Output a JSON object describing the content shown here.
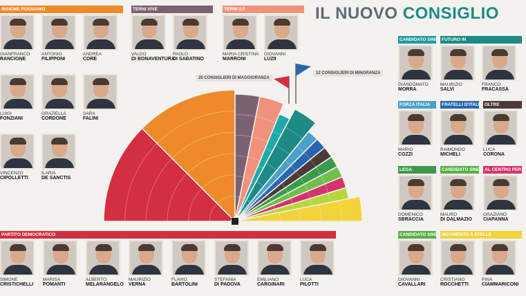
{
  "title": {
    "part1": "IL NUOVO",
    "part2": "CONSIGLIO"
  },
  "labels": {
    "majority": "20 CONSIGLIERI DI MAGGIORANZA",
    "minority": "12 CONSIGLIERI DI MINORANZA"
  },
  "colors": {
    "pd": "#d32f42",
    "insieme": "#ee8a2a",
    "terni_vive": "#7b6270",
    "terni30": "#f0917c",
    "forza": "#4aa0c8",
    "fratelli": "#2a66b0",
    "futuro": "#1d8a86",
    "oltre": "#4b3a36",
    "lega": "#3d9a4d",
    "alcentro": "#d6336c",
    "m5s": "#f2d33a",
    "sindaco_teal": "#1f9aa0",
    "sindaco_green": "#5ab048"
  },
  "chart_data": {
    "type": "pie",
    "variant": "semicircle-parliament",
    "title": "IL NUOVO CONSIGLIO",
    "series": [
      {
        "name": "Partito Democratico",
        "seats": 8,
        "color": "#d32f42"
      },
      {
        "name": "Insieme Possiamo",
        "seats": 8,
        "color": "#ee8a2a"
      },
      {
        "name": "Terni Vive",
        "seats": 2,
        "color": "#7b6270"
      },
      {
        "name": "Terni 3.0",
        "seats": 2,
        "color": "#f0917c"
      },
      {
        "name": "Candidato sindaco Morra",
        "seats": 1,
        "color": "#20a9a9"
      },
      {
        "name": "Futuro In",
        "seats": 2,
        "color": "#1d8a86"
      },
      {
        "name": "Forza Italia",
        "seats": 1,
        "color": "#4aa0c8"
      },
      {
        "name": "Fratelli d'Italia",
        "seats": 1,
        "color": "#2a66b0"
      },
      {
        "name": "Oltre",
        "seats": 1,
        "color": "#4b3a36"
      },
      {
        "name": "Lega",
        "seats": 1,
        "color": "#3d9a4d"
      },
      {
        "name": "Candidato sindaco Di Dalmazio",
        "seats": 1,
        "color": "#6fbf4a"
      },
      {
        "name": "Al Centro per T.",
        "seats": 1,
        "color": "#d6336c"
      },
      {
        "name": "Candidato sindaco Cavallari",
        "seats": 1,
        "color": "#b6d63a"
      },
      {
        "name": "Movimento 5 Stelle",
        "seats": 2,
        "color": "#f2d33a"
      }
    ]
  },
  "groups": {
    "insieme": {
      "name": "INSIEME POSSIAMO",
      "people": [
        {
          "first": "GIANFRANCO",
          "last": "RANCIONE"
        },
        {
          "first": "ANTONIO",
          "last": "FILIPPONI"
        },
        {
          "first": "ANDREA",
          "last": "CORE"
        },
        {
          "first": "LUIGI",
          "last": "FONZIANI"
        },
        {
          "first": "GRAZIELLA",
          "last": "CORDONE"
        },
        {
          "first": "SARA",
          "last": "FALINI"
        },
        {
          "first": "VINCENZO",
          "last": "CIPOLLETTI"
        },
        {
          "first": "ILARIA",
          "last": "DE SANCTIS"
        }
      ]
    },
    "terni_vive": {
      "name": "TERNI VIVE",
      "people": [
        {
          "first": "VALDO",
          "last": "DI BONAVENTURA"
        },
        {
          "first": "PAOLO",
          "last": "DI SABATINO"
        }
      ]
    },
    "terni30": {
      "name": "TERNI 3.0",
      "people": [
        {
          "first": "MARIA CRISTINA",
          "last": "MARRONI"
        },
        {
          "first": "GIOVANNI",
          "last": "LUZII"
        }
      ]
    },
    "pd": {
      "name": "PARTITO DEMOCRATICO",
      "people": [
        {
          "first": "SIMONE",
          "last": "CRISTICHELLI"
        },
        {
          "first": "MARISA",
          "last": "POMANTI"
        },
        {
          "first": "ALBERTO",
          "last": "MELARANGELO"
        },
        {
          "first": "MAURIZIO",
          "last": "VERNA"
        },
        {
          "first": "FLAVIO",
          "last": "BARTOLINI"
        },
        {
          "first": "STEFANIA",
          "last": "DI PADOVA"
        },
        {
          "first": "EMILIANO",
          "last": "CARGINARI"
        },
        {
          "first": "LUCA",
          "last": "PILOTTI"
        }
      ]
    },
    "cand_morra": {
      "name": "Candidato sindaco",
      "people": [
        {
          "first": "GIANDOMATO",
          "last": "MORRA"
        }
      ]
    },
    "futuro": {
      "name": "FUTURO IN",
      "people": [
        {
          "first": "MAURIZIO",
          "last": "SALVI"
        },
        {
          "first": "FRANCO",
          "last": "FRACASSA"
        }
      ]
    },
    "forza": {
      "name": "FORZA ITALIA",
      "people": [
        {
          "first": "MARIO",
          "last": "COZZI"
        }
      ]
    },
    "fratelli": {
      "name": "FRATELLI D'ITALIA",
      "people": [
        {
          "first": "RAIMONDO",
          "last": "MICHELI"
        }
      ]
    },
    "oltre": {
      "name": "OLTRE",
      "people": [
        {
          "first": "LUCA",
          "last": "CORONA"
        }
      ]
    },
    "lega": {
      "name": "LEGA",
      "people": [
        {
          "first": "DOMENICO",
          "last": "SBRACCIA"
        }
      ]
    },
    "cand_dalmazio": {
      "name": "Candidato sindaco",
      "people": [
        {
          "first": "MAURO",
          "last": "DI DALMAZIO"
        }
      ]
    },
    "alcentro": {
      "name": "AL CENTRO PER T.",
      "people": [
        {
          "first": "GRAZIANO",
          "last": "CIAPANNA"
        }
      ]
    },
    "cand_cavallari": {
      "name": "Candidato sindaco",
      "people": [
        {
          "first": "GIOVANNI",
          "last": "CAVALLARI"
        }
      ]
    },
    "m5s": {
      "name": "MOVIMENTO 5 STELLE",
      "people": [
        {
          "first": "CRISTIANO",
          "last": "ROCCHETTI"
        },
        {
          "first": "PINA",
          "last": "CIAMMARICONI"
        }
      ]
    }
  }
}
